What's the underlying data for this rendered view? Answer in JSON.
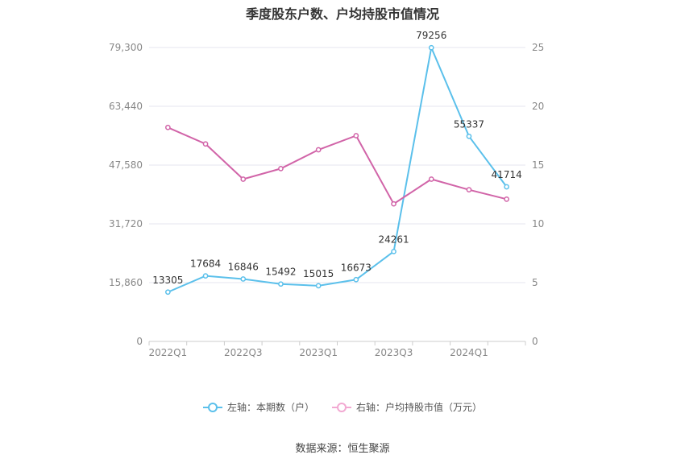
{
  "title": "季度股东户数、户均持股市值情况",
  "source": "数据来源：恒生聚源",
  "colors": {
    "left_series": "#5bc0eb",
    "right_series": "#d164a8",
    "grid": "#e6e6ef",
    "axis_text": "#888888"
  },
  "chart_data": {
    "type": "line",
    "x": [
      "2022Q1",
      "2022Q2",
      "2022Q3",
      "2022Q4",
      "2023Q1",
      "2023Q2",
      "2023Q3",
      "2023Q4",
      "2024Q1",
      "2024Q2"
    ],
    "x_tick_labels": [
      "2022Q1",
      "2022Q3",
      "2023Q1",
      "2023Q3",
      "2024Q1"
    ],
    "left_axis": {
      "ticks": [
        "0",
        "15,860",
        "31,720",
        "47,580",
        "63,440",
        "79,300"
      ],
      "range": [
        0,
        79300
      ]
    },
    "right_axis": {
      "ticks": [
        "0",
        "5",
        "10",
        "15",
        "20",
        "25"
      ],
      "range": [
        0,
        25
      ]
    },
    "series": [
      {
        "name": "左轴：本期数（户）",
        "axis": "left",
        "values": [
          13305,
          17684,
          16846,
          15492,
          15015,
          16673,
          24261,
          79256,
          55337,
          41714
        ],
        "labels": [
          "13305",
          "17684",
          "16846",
          "15492",
          "15015",
          "16673",
          "24261",
          "79256",
          "55337",
          "41714"
        ]
      },
      {
        "name": "右轴：户均持股市值（万元）",
        "axis": "right",
        "values": [
          18.2,
          16.8,
          13.8,
          14.7,
          16.3,
          17.5,
          11.7,
          13.8,
          12.9,
          12.1
        ]
      }
    ],
    "grid": true,
    "legend_position": "bottom"
  }
}
